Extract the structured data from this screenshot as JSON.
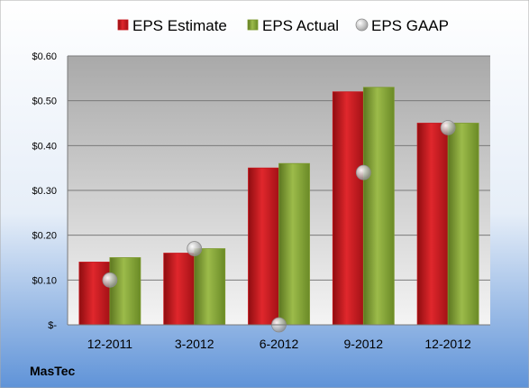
{
  "company": "MasTec",
  "colors": {
    "estimate": "#c8151b",
    "actual": "#7d9a2e",
    "gaap": "#b9b9b9"
  },
  "chart_data": {
    "type": "bar",
    "categories": [
      "12-2011",
      "3-2012",
      "6-2012",
      "9-2012",
      "12-2012"
    ],
    "series": [
      {
        "name": "EPS Estimate",
        "values": [
          0.14,
          0.16,
          0.35,
          0.52,
          0.45
        ]
      },
      {
        "name": "EPS Actual",
        "values": [
          0.15,
          0.17,
          0.36,
          0.53,
          0.45
        ]
      },
      {
        "name": "EPS GAAP",
        "type": "scatter",
        "values": [
          0.1,
          0.17,
          0.0,
          0.34,
          0.44
        ]
      }
    ],
    "yticks": [
      0,
      0.1,
      0.2,
      0.3,
      0.4,
      0.5,
      0.6
    ],
    "ytick_labels": [
      "$-",
      "$0.10",
      "$0.20",
      "$0.30",
      "$0.40",
      "$0.50",
      "$0.60"
    ],
    "ylim": [
      0,
      0.6
    ],
    "grid": true,
    "legend": "top"
  }
}
